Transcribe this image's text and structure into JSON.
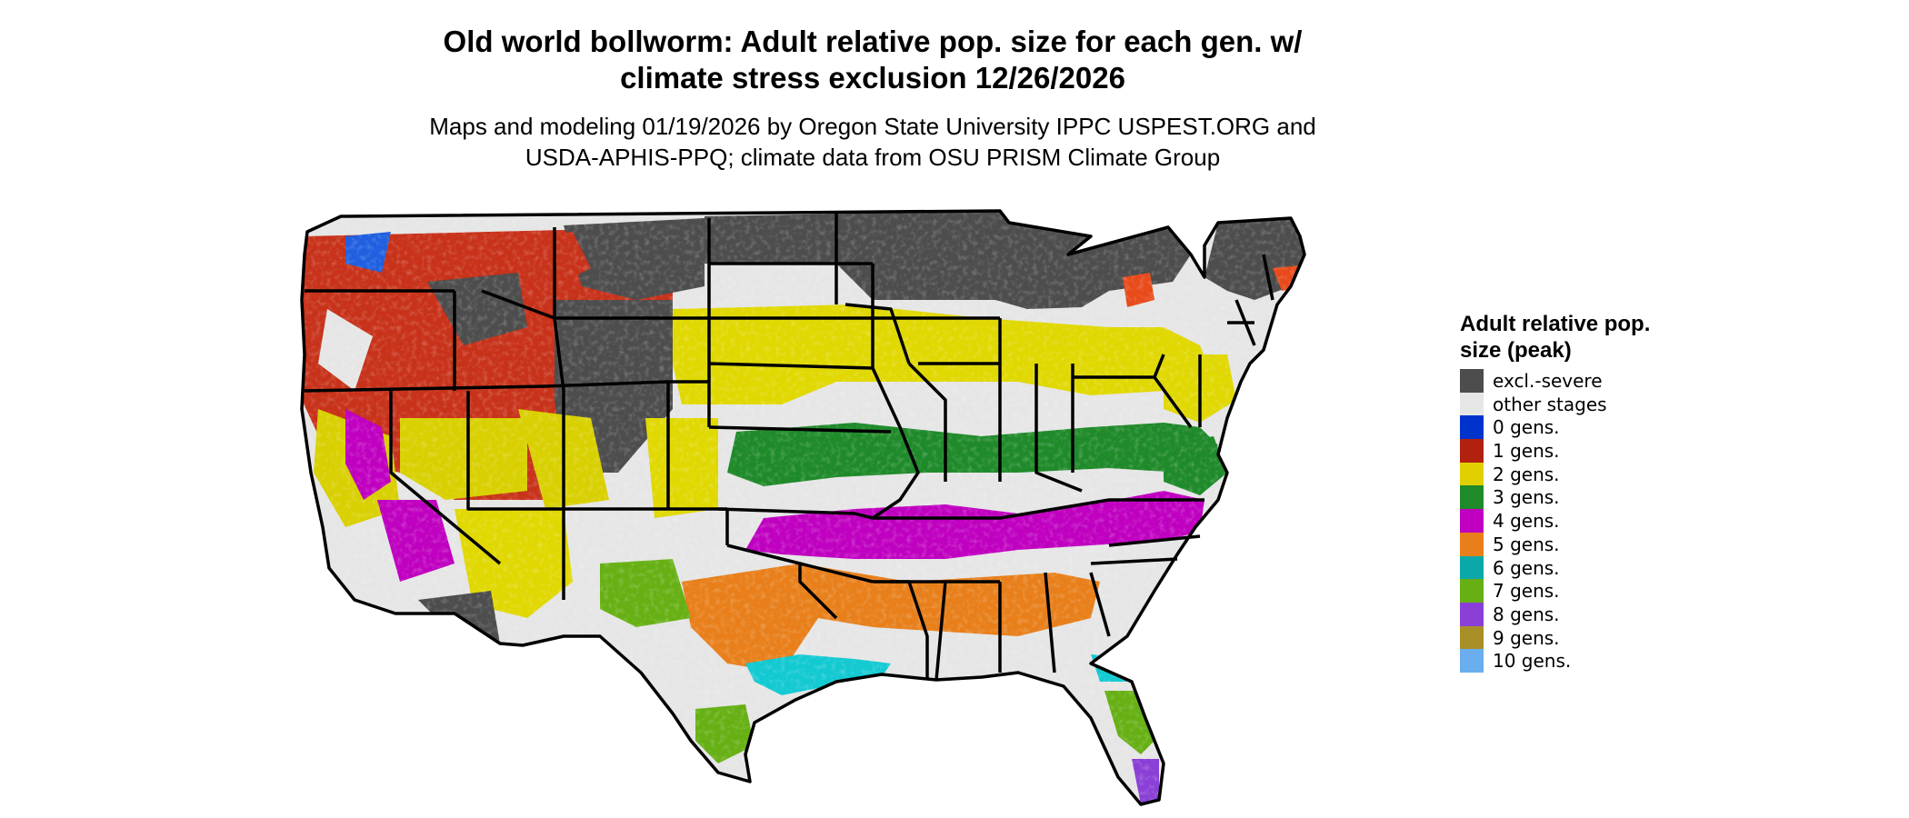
{
  "title_line1": "Old world bollworm: Adult relative pop. size for each gen. w/",
  "title_line2": "climate stress exclusion 12/26/2026",
  "subtitle_line1": "Maps and modeling 01/19/2026 by Oregon State University IPPC USPEST.ORG and",
  "subtitle_line2": "USDA-APHIS-PPQ; climate data from OSU PRISM Climate Group",
  "legend": {
    "title": "Adult relative pop. size (peak)",
    "items": [
      {
        "label": "excl.-severe",
        "color": "#4d4d4d"
      },
      {
        "label": "other stages",
        "color": "#e6e6e6"
      },
      {
        "label": "0 gens.",
        "color": "#0033cc"
      },
      {
        "label": "1 gens.",
        "color": "#b22010"
      },
      {
        "label": "2 gens.",
        "color": "#e0d000"
      },
      {
        "label": "3 gens.",
        "color": "#1f8a2a"
      },
      {
        "label": "4 gens.",
        "color": "#c000c0"
      },
      {
        "label": "5 gens.",
        "color": "#e87f1a"
      },
      {
        "label": "6 gens.",
        "color": "#0aa8a8"
      },
      {
        "label": "7 gens.",
        "color": "#66b014"
      },
      {
        "label": "8 gens.",
        "color": "#8a3fd6"
      },
      {
        "label": "9 gens.",
        "color": "#a88f28"
      },
      {
        "label": "10 gens.",
        "color": "#6aaef0"
      }
    ]
  }
}
